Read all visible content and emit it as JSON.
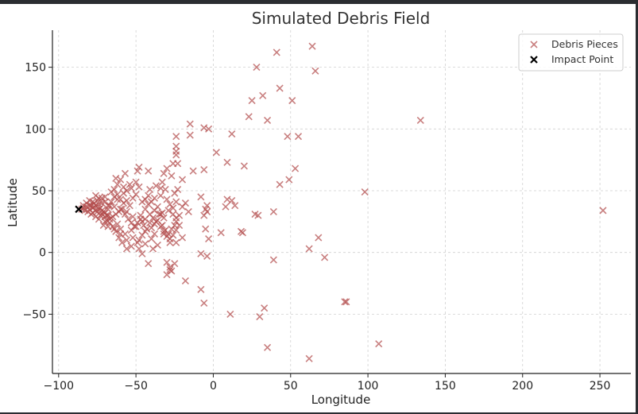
{
  "chart_data": {
    "type": "scatter",
    "title": "Simulated Debris Field",
    "xlabel": "Longitude",
    "ylabel": "Latitude",
    "xlim": [
      -104,
      270
    ],
    "ylim": [
      -98,
      180
    ],
    "xticks": [
      -100,
      -50,
      0,
      50,
      100,
      150,
      200,
      250
    ],
    "yticks": [
      -50,
      0,
      50,
      100,
      150
    ],
    "xtick_labels": [
      "−100",
      "−50",
      "0",
      "50",
      "100",
      "150",
      "200",
      "250"
    ],
    "ytick_labels": [
      "−50",
      "0",
      "50",
      "100",
      "150"
    ],
    "grid": true,
    "legend_position": "top-right",
    "series": [
      {
        "name": "Debris Pieces",
        "marker": "x",
        "color": "#b24a4a",
        "points": [
          [
            64,
            167
          ],
          [
            41,
            162
          ],
          [
            28,
            150
          ],
          [
            66,
            147
          ],
          [
            43,
            133
          ],
          [
            32,
            127
          ],
          [
            51,
            123
          ],
          [
            25,
            123
          ],
          [
            134,
            107
          ],
          [
            23,
            110
          ],
          [
            35,
            107
          ],
          [
            -15,
            104
          ],
          [
            -3,
            100
          ],
          [
            -6,
            101
          ],
          [
            -15,
            95
          ],
          [
            -24,
            94
          ],
          [
            12,
            96
          ],
          [
            48,
            94
          ],
          [
            55,
            94
          ],
          [
            -24,
            86
          ],
          [
            -24,
            82
          ],
          [
            -24,
            79
          ],
          [
            2,
            81
          ],
          [
            -23,
            72
          ],
          [
            -26,
            72
          ],
          [
            -6,
            67
          ],
          [
            -30,
            68
          ],
          [
            9,
            73
          ],
          [
            -13,
            66
          ],
          [
            20,
            70
          ],
          [
            53,
            68
          ],
          [
            -48,
            69
          ],
          [
            -49,
            66
          ],
          [
            -42,
            66
          ],
          [
            -32,
            64
          ],
          [
            -27,
            62
          ],
          [
            -57,
            64
          ],
          [
            -60,
            59
          ],
          [
            -63,
            60
          ],
          [
            -62,
            55
          ],
          [
            -50,
            57
          ],
          [
            -20,
            59
          ],
          [
            -33,
            57
          ],
          [
            -37,
            54
          ],
          [
            -41,
            51
          ],
          [
            -48,
            53
          ],
          [
            -53,
            52
          ],
          [
            -56,
            50
          ],
          [
            -23,
            51
          ],
          [
            -25,
            48
          ],
          [
            -31,
            51
          ],
          [
            -34,
            46
          ],
          [
            -38,
            44
          ],
          [
            -42,
            46
          ],
          [
            98,
            49
          ],
          [
            49,
            59
          ],
          [
            43,
            55
          ],
          [
            -8,
            45
          ],
          [
            -4,
            38
          ],
          [
            9,
            43
          ],
          [
            12,
            42
          ],
          [
            14,
            38
          ],
          [
            8,
            37
          ],
          [
            -5,
            35
          ],
          [
            -20,
            37
          ],
          [
            -24,
            41
          ],
          [
            -26,
            36
          ],
          [
            -29,
            34
          ],
          [
            -33,
            32
          ],
          [
            -38,
            34
          ],
          [
            -41,
            31
          ],
          [
            -44,
            35
          ],
          [
            -47,
            30
          ],
          [
            -52,
            29
          ],
          [
            -56,
            33
          ],
          [
            -60,
            35
          ],
          [
            -64,
            37
          ],
          [
            -67,
            38
          ],
          [
            -70,
            41
          ],
          [
            -72,
            44
          ],
          [
            -74,
            39
          ],
          [
            -76,
            34
          ],
          [
            -78,
            32
          ],
          [
            -80,
            35
          ],
          [
            -82,
            37
          ],
          [
            -84,
            36
          ],
          [
            -79,
            38
          ],
          [
            -77,
            40
          ],
          [
            -75,
            42
          ],
          [
            -73,
            36
          ],
          [
            -71,
            33
          ],
          [
            -69,
            30
          ],
          [
            -67,
            27
          ],
          [
            -65,
            29
          ],
          [
            -63,
            31
          ],
          [
            -61,
            33
          ],
          [
            -59,
            35
          ],
          [
            -57,
            31
          ],
          [
            -55,
            27
          ],
          [
            -53,
            24
          ],
          [
            -51,
            21
          ],
          [
            -49,
            24
          ],
          [
            -47,
            27
          ],
          [
            -45,
            22
          ],
          [
            -43,
            19
          ],
          [
            -41,
            24
          ],
          [
            -39,
            28
          ],
          [
            -37,
            25
          ],
          [
            -35,
            31
          ],
          [
            -33,
            22
          ],
          [
            -31,
            18
          ],
          [
            -29,
            15
          ],
          [
            -27,
            19
          ],
          [
            -25,
            22
          ],
          [
            -24,
            25
          ],
          [
            -22,
            30
          ],
          [
            -38,
            15
          ],
          [
            -40,
            11
          ],
          [
            -44,
            7
          ],
          [
            -49,
            8
          ],
          [
            -53,
            5
          ],
          [
            -56,
            3
          ],
          [
            -59,
            8
          ],
          [
            -61,
            12
          ],
          [
            -63,
            17
          ],
          [
            -65,
            21
          ],
          [
            -67,
            24
          ],
          [
            -69,
            26
          ],
          [
            -71,
            22
          ],
          [
            -73,
            30
          ],
          [
            -75,
            33
          ],
          [
            -77,
            37
          ],
          [
            -79,
            31
          ],
          [
            -81,
            33
          ],
          [
            -83,
            34
          ],
          [
            -85,
            35
          ],
          [
            -80,
            38
          ],
          [
            -78,
            36
          ],
          [
            -76,
            38
          ],
          [
            -74,
            35
          ],
          [
            -72,
            31
          ],
          [
            -70,
            29
          ],
          [
            -68,
            35
          ],
          [
            -66,
            41
          ],
          [
            -64,
            45
          ],
          [
            -62,
            47
          ],
          [
            -60,
            43
          ],
          [
            -58,
            40
          ],
          [
            -56,
            42
          ],
          [
            -54,
            38
          ],
          [
            -52,
            44
          ],
          [
            -50,
            47
          ],
          [
            -46,
            41
          ],
          [
            -44,
            43
          ],
          [
            -42,
            39
          ],
          [
            -40,
            41
          ],
          [
            -36,
            37
          ],
          [
            -34,
            52
          ],
          [
            -30,
            43
          ],
          [
            -28,
            39
          ],
          [
            -26,
            31
          ],
          [
            -24,
            28
          ],
          [
            -18,
            40
          ],
          [
            -16,
            33
          ],
          [
            -20,
            12
          ],
          [
            -24,
            8
          ],
          [
            -28,
            11
          ],
          [
            -32,
            17
          ],
          [
            -36,
            6
          ],
          [
            -39,
            3
          ],
          [
            -46,
            -1
          ],
          [
            -48,
            3
          ],
          [
            -42,
            -9
          ],
          [
            -25,
            -9
          ],
          [
            -28,
            -12
          ],
          [
            -27,
            -15
          ],
          [
            -30,
            -18
          ],
          [
            -18,
            -23
          ],
          [
            -6,
            -41
          ],
          [
            -8,
            -30
          ],
          [
            -8,
            -1
          ],
          [
            -4,
            -3
          ],
          [
            -3,
            11
          ],
          [
            -5,
            19
          ],
          [
            -6,
            30
          ],
          [
            -4,
            33
          ],
          [
            5,
            16
          ],
          [
            18,
            17
          ],
          [
            19,
            16
          ],
          [
            27,
            31
          ],
          [
            29,
            30
          ],
          [
            39,
            33
          ],
          [
            39,
            -6
          ],
          [
            30,
            -52
          ],
          [
            33,
            -45
          ],
          [
            11,
            -50
          ],
          [
            35,
            -77
          ],
          [
            62,
            -86
          ],
          [
            62,
            3
          ],
          [
            68,
            12
          ],
          [
            72,
            -4
          ],
          [
            86,
            -40
          ],
          [
            85,
            -40
          ],
          [
            107,
            -74
          ],
          [
            252,
            34
          ],
          [
            -22,
            22
          ],
          [
            -24,
            18
          ],
          [
            -26,
            14
          ],
          [
            -34,
            31
          ],
          [
            -32,
            28
          ],
          [
            -44,
            27
          ],
          [
            -46,
            25
          ],
          [
            -50,
            21
          ],
          [
            -53,
            18
          ],
          [
            -57,
            15
          ],
          [
            -60,
            19
          ],
          [
            -62,
            23
          ],
          [
            -66,
            28
          ],
          [
            -68,
            30
          ],
          [
            -70,
            32
          ],
          [
            -72,
            34
          ],
          [
            -74,
            27
          ],
          [
            -76,
            29
          ],
          [
            -78,
            41
          ],
          [
            -80,
            42
          ],
          [
            -82,
            40
          ],
          [
            -84,
            38
          ],
          [
            -70,
            45
          ],
          [
            -66,
            49
          ],
          [
            -64,
            51
          ],
          [
            -58,
            53
          ],
          [
            -54,
            55
          ],
          [
            -58,
            48
          ],
          [
            -62,
            43
          ],
          [
            -68,
            38
          ],
          [
            -72,
            40
          ],
          [
            -74,
            44
          ],
          [
            -76,
            46
          ],
          [
            -70,
            25
          ],
          [
            -68,
            21
          ],
          [
            -64,
            19
          ],
          [
            -60,
            15
          ],
          [
            -56,
            10
          ],
          [
            -52,
            12
          ],
          [
            -48,
            10
          ],
          [
            -46,
            14
          ],
          [
            -44,
            17
          ],
          [
            -40,
            20
          ],
          [
            -38,
            23
          ],
          [
            -36,
            26
          ],
          [
            -34,
            21
          ],
          [
            -32,
            15
          ],
          [
            -30,
            13
          ],
          [
            -28,
            8
          ],
          [
            -30,
            -8
          ],
          [
            -28,
            -14
          ]
        ]
      },
      {
        "name": "Impact Point",
        "marker": "x",
        "color": "#000000",
        "points": [
          [
            -87,
            35
          ]
        ]
      }
    ]
  }
}
